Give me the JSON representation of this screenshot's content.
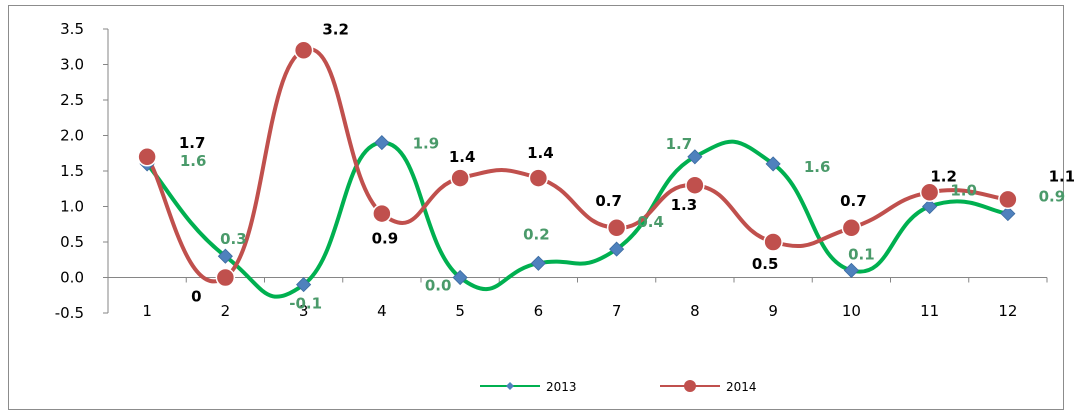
{
  "chart_data": {
    "type": "line",
    "categories": [
      "1",
      "2",
      "3",
      "4",
      "5",
      "6",
      "7",
      "8",
      "9",
      "10",
      "11",
      "12"
    ],
    "yticks": [
      "-0.5",
      "0.0",
      "0.5",
      "1.0",
      "1.5",
      "2.0",
      "2.5",
      "3.0",
      "3.5"
    ],
    "ylim": [
      -0.5,
      3.5
    ],
    "grid": false,
    "legend": "bottom",
    "series": [
      {
        "name": "2013",
        "values": [
          1.6,
          0.3,
          -0.1,
          1.9,
          0.0,
          0.2,
          0.4,
          1.7,
          1.6,
          0.1,
          1.0,
          0.9
        ],
        "labels": [
          "1.6",
          "0.3",
          "-0.1",
          "1.9",
          "0.0",
          "0.2",
          "0.4",
          "1.7",
          "1.6",
          "0.1",
          "1.0",
          "0.9"
        ],
        "line_color": "#00b050",
        "marker_color": "#4f81bd",
        "label_color": "#4a9a6a",
        "marker": "diamond"
      },
      {
        "name": "2014",
        "values": [
          1.7,
          0.0,
          3.2,
          0.9,
          1.4,
          1.4,
          0.7,
          1.3,
          0.5,
          0.7,
          1.2,
          1.1
        ],
        "labels": [
          "1.7",
          "0",
          "3.2",
          "0.9",
          "1.4",
          "1.4",
          "0.7",
          "1.3",
          "0.5",
          "0.7",
          "1.2",
          "1.1"
        ],
        "line_color": "#c0504d",
        "marker_color": "#c0504d",
        "label_color": "#000000",
        "marker": "circle"
      }
    ]
  }
}
